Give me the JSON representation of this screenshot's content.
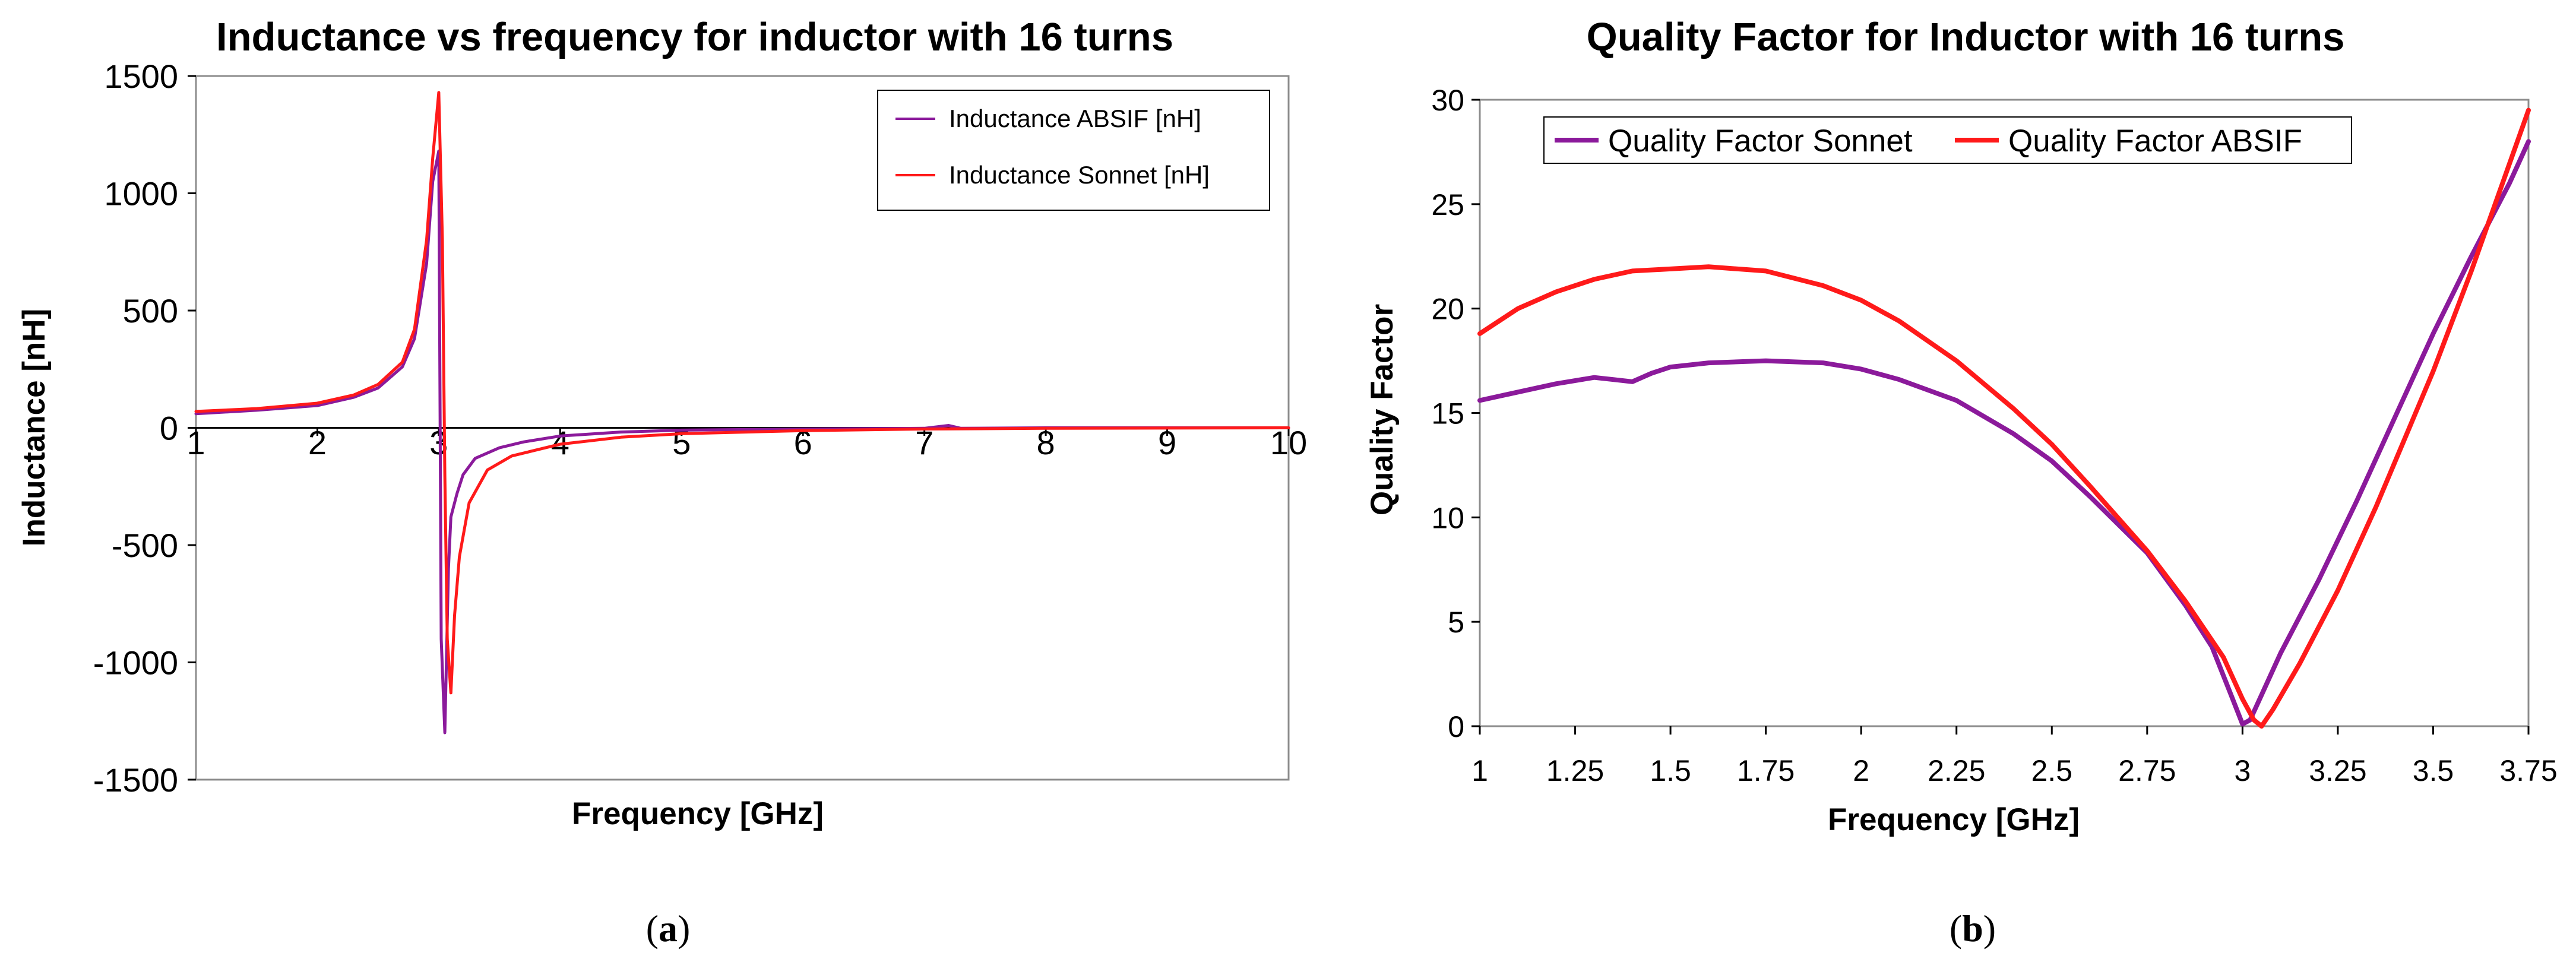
{
  "chart_data": [
    {
      "type": "line",
      "title": "Inductance vs frequency for inductor with 16 turns",
      "xlabel": "Frequency [GHz]",
      "ylabel": "Inductance [nH]",
      "xlim": [
        1,
        10
      ],
      "ylim": [
        -1500,
        1500
      ],
      "xticks": [
        1,
        2,
        3,
        4,
        5,
        6,
        7,
        8,
        9,
        10
      ],
      "yticks": [
        1500,
        1000,
        500,
        0,
        -500,
        -1000,
        -1500
      ],
      "grid": false,
      "legend_position": "top-right",
      "panel_label": "a",
      "series": [
        {
          "name": "Inductance ABSIF [nH]",
          "color": "#8B1A9B",
          "x": [
            1,
            1.5,
            2,
            2.3,
            2.5,
            2.7,
            2.8,
            2.9,
            2.95,
            3.0,
            3.02,
            3.05,
            3.08,
            3.1,
            3.15,
            3.2,
            3.3,
            3.5,
            3.7,
            4,
            4.5,
            5,
            6,
            7,
            7.2,
            7.3,
            8,
            10
          ],
          "y": [
            60,
            75,
            95,
            130,
            170,
            260,
            380,
            700,
            1050,
            1180,
            -900,
            -1300,
            -600,
            -380,
            -280,
            -200,
            -130,
            -85,
            -60,
            -35,
            -18,
            -10,
            -5,
            -2,
            10,
            -2,
            0,
            0
          ]
        },
        {
          "name": "Inductance Sonnet [nH]",
          "color": "#FF1A1A",
          "x": [
            1,
            1.5,
            2,
            2.3,
            2.5,
            2.7,
            2.8,
            2.9,
            2.95,
            3.0,
            3.03,
            3.05,
            3.07,
            3.1,
            3.13,
            3.17,
            3.25,
            3.4,
            3.6,
            4,
            4.5,
            5,
            6,
            7,
            8,
            10
          ],
          "y": [
            70,
            82,
            105,
            140,
            185,
            280,
            420,
            800,
            1150,
            1430,
            800,
            -200,
            -900,
            -1130,
            -800,
            -550,
            -320,
            -180,
            -120,
            -70,
            -40,
            -25,
            -12,
            -5,
            -2,
            0
          ]
        }
      ]
    },
    {
      "type": "line",
      "title": "Quality Factor for Inductor with 16  turns",
      "xlabel": "Frequency [GHz]",
      "ylabel": "Quality Factor",
      "xlim": [
        1,
        3.75
      ],
      "ylim": [
        0,
        30
      ],
      "xticks": [
        "1",
        "1.25",
        "1.5",
        "1.75",
        "2",
        "2.25",
        "2.5",
        "2.75",
        "3",
        "3.25",
        "3.5",
        "3.75"
      ],
      "yticks": [
        "30",
        "25",
        "20",
        "15",
        "10",
        "5",
        "0"
      ],
      "grid": false,
      "legend_position": "top-left",
      "panel_label": "b",
      "series": [
        {
          "name": "Quality Factor Sonnet",
          "color": "#8B1A9B",
          "x": [
            1,
            1.1,
            1.2,
            1.3,
            1.35,
            1.4,
            1.45,
            1.5,
            1.6,
            1.75,
            1.9,
            2,
            2.1,
            2.25,
            2.4,
            2.5,
            2.6,
            2.75,
            2.85,
            2.92,
            2.97,
            3.0,
            3.02,
            3.05,
            3.1,
            3.2,
            3.3,
            3.4,
            3.5,
            3.6,
            3.7,
            3.75
          ],
          "y": [
            15.6,
            16.0,
            16.4,
            16.7,
            16.6,
            16.5,
            16.9,
            17.2,
            17.4,
            17.5,
            17.4,
            17.1,
            16.6,
            15.6,
            14.0,
            12.7,
            11.0,
            8.3,
            5.8,
            3.8,
            1.5,
            0.1,
            0.3,
            1.5,
            3.5,
            7.0,
            10.8,
            14.8,
            18.8,
            22.5,
            26.0,
            28.0
          ]
        },
        {
          "name": "Quality Factor ABSIF",
          "color": "#FF1A1A",
          "x": [
            1,
            1.1,
            1.2,
            1.3,
            1.4,
            1.5,
            1.6,
            1.75,
            1.9,
            2,
            2.1,
            2.25,
            2.4,
            2.5,
            2.6,
            2.75,
            2.85,
            2.95,
            3.0,
            3.03,
            3.05,
            3.08,
            3.15,
            3.25,
            3.35,
            3.5,
            3.6,
            3.75
          ],
          "y": [
            18.8,
            20.0,
            20.8,
            21.4,
            21.8,
            21.9,
            22.0,
            21.8,
            21.1,
            20.4,
            19.4,
            17.5,
            15.2,
            13.5,
            11.5,
            8.4,
            6.0,
            3.3,
            1.3,
            0.3,
            0.0,
            0.8,
            3.0,
            6.5,
            10.5,
            17.0,
            21.8,
            29.5
          ]
        }
      ]
    }
  ]
}
